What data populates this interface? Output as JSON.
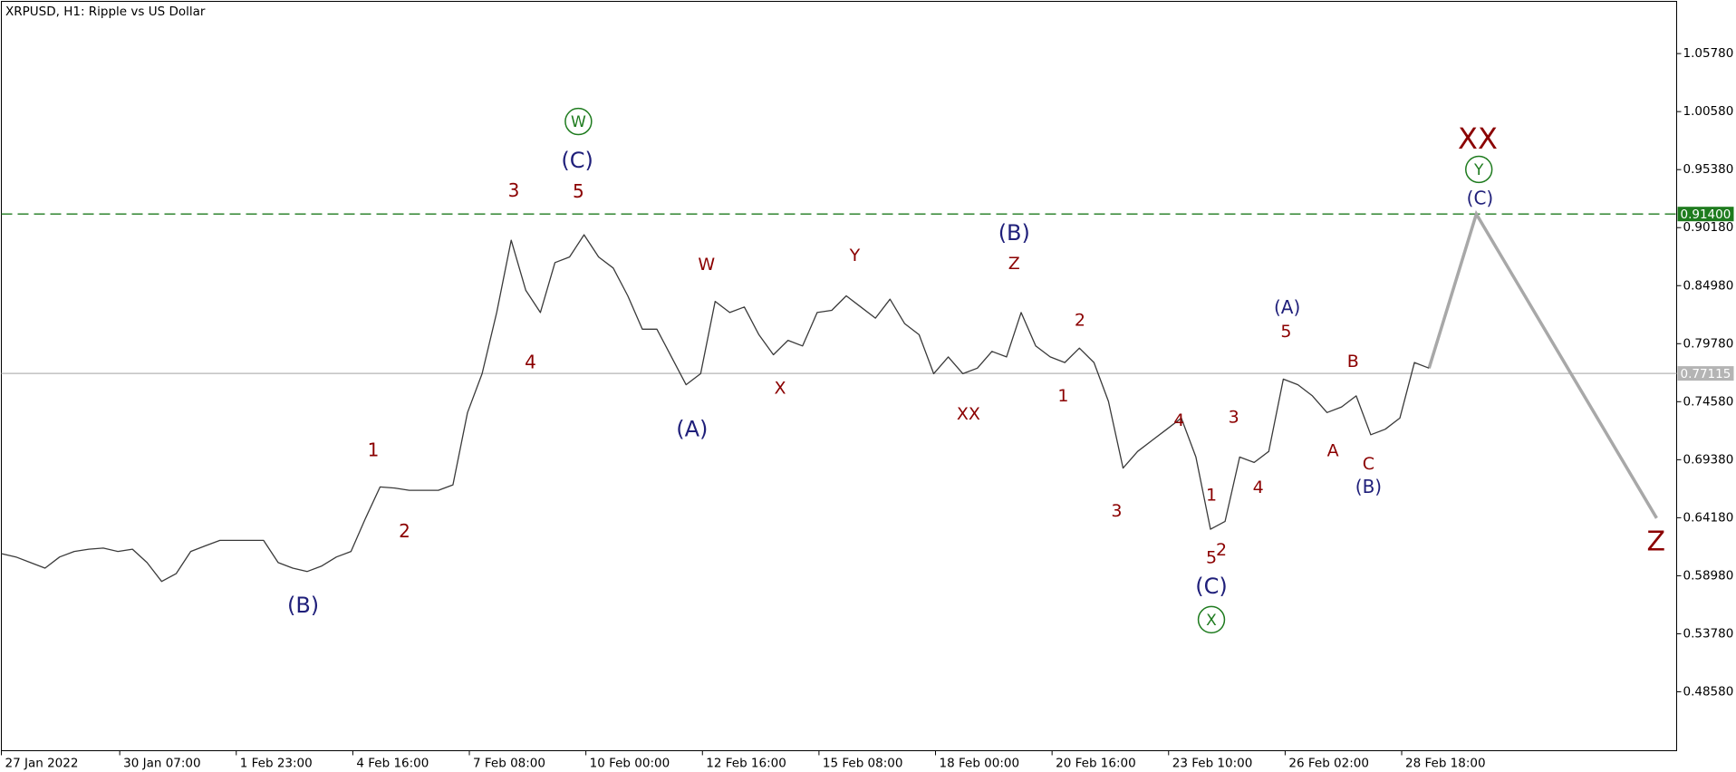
{
  "chart_data": {
    "type": "line",
    "title": "XRPUSD, H1:  Ripple vs US Dollar",
    "x": [
      0,
      8,
      16,
      24,
      32,
      40,
      48,
      56,
      64,
      72,
      80,
      88,
      96,
      104,
      112,
      120,
      128,
      136,
      144,
      152,
      160,
      168,
      176,
      184,
      192,
      200,
      208,
      216,
      224,
      232,
      240,
      248,
      256,
      264,
      272,
      280,
      288,
      296,
      304,
      312,
      320,
      328,
      336,
      344,
      352,
      360,
      368,
      376,
      384,
      392,
      400,
      408,
      416,
      424,
      432,
      440,
      448,
      456,
      464,
      472,
      480,
      488,
      496,
      504,
      512,
      520,
      528,
      536,
      544,
      552,
      560,
      568,
      576,
      584,
      592,
      600,
      608,
      616,
      624,
      632,
      640,
      648,
      656,
      664,
      672,
      680,
      688,
      696,
      704,
      712,
      720,
      728,
      736,
      744,
      752,
      760,
      768,
      776,
      784
    ],
    "series": [
      {
        "color": "#3a3a3a",
        "values": [
          0.6096,
          0.6066,
          0.6016,
          0.5966,
          0.6066,
          0.6116,
          0.6136,
          0.6146,
          0.6116,
          0.6136,
          0.6016,
          0.5847,
          0.5917,
          0.6116,
          0.6166,
          0.6215,
          0.6215,
          0.6215,
          0.6215,
          0.6016,
          0.5966,
          0.5936,
          0.5986,
          0.6066,
          0.6116,
          0.6415,
          0.6694,
          0.6684,
          0.6664,
          0.6664,
          0.6664,
          0.6713,
          0.7361,
          0.7709,
          0.8257,
          0.8905,
          0.8456,
          0.8257,
          0.8705,
          0.8755,
          0.8954,
          0.8755,
          0.8656,
          0.8407,
          0.8108,
          0.8108,
          0.7859,
          0.761,
          0.7709,
          0.8357,
          0.8257,
          0.8307,
          0.8058,
          0.7879,
          0.8008,
          0.7958,
          0.8257,
          0.8277,
          0.8407,
          0.8307,
          0.8207,
          0.8377,
          0.8158,
          0.8058,
          0.7709,
          0.7859,
          0.7709,
          0.7759,
          0.7909,
          0.7859,
          0.8257,
          0.7958,
          0.7859,
          0.7809,
          0.7938,
          0.7809,
          0.7461,
          0.6863,
          0.7012,
          0.7112,
          0.7211,
          0.7311,
          0.6962,
          0.6315,
          0.6385,
          0.6962,
          0.6913,
          0.7012,
          0.766,
          0.761,
          0.751,
          0.7361,
          0.7411,
          0.751,
          0.7162,
          0.7211,
          0.7311,
          0.7809,
          0.7759
        ]
      }
    ],
    "forecast": {
      "color": "#a8a8a8",
      "x": [
        784,
        810,
        909
      ],
      "values": [
        0.7759,
        0.914,
        0.6415
      ]
    },
    "xlim": [
      0,
      920
    ],
    "ylim": [
      0.433,
      1.1046
    ],
    "xticks": [
      {
        "value": 0,
        "label": "27 Jan 2022"
      },
      {
        "value": 65,
        "label": "30 Jan 07:00"
      },
      {
        "value": 129,
        "label": "1 Feb 23:00"
      },
      {
        "value": 193,
        "label": "4 Feb 16:00"
      },
      {
        "value": 257,
        "label": "7 Feb 08:00"
      },
      {
        "value": 321,
        "label": "10 Feb 00:00"
      },
      {
        "value": 385,
        "label": "12 Feb 16:00"
      },
      {
        "value": 449,
        "label": "15 Feb 08:00"
      },
      {
        "value": 513,
        "label": "18 Feb 00:00"
      },
      {
        "value": 577,
        "label": "20 Feb 16:00"
      },
      {
        "value": 641,
        "label": "23 Feb 10:00"
      },
      {
        "value": 705,
        "label": "26 Feb 02:00"
      },
      {
        "value": 769,
        "label": "28 Feb 18:00"
      }
    ],
    "yticks": [
      {
        "value": 0.4858,
        "label": "0.48580"
      },
      {
        "value": 0.5378,
        "label": "0.53780"
      },
      {
        "value": 0.5898,
        "label": "0.58980"
      },
      {
        "value": 0.6418,
        "label": "0.64180"
      },
      {
        "value": 0.6938,
        "label": "0.69380"
      },
      {
        "value": 0.7458,
        "label": "0.74580"
      },
      {
        "value": 0.7978,
        "label": "0.79780"
      },
      {
        "value": 0.8498,
        "label": "0.84980"
      },
      {
        "value": 0.9018,
        "label": "0.90180"
      },
      {
        "value": 0.9538,
        "label": "0.95380"
      },
      {
        "value": 1.0058,
        "label": "1.00580"
      },
      {
        "value": 1.0578,
        "label": "1.05780"
      }
    ],
    "levels": [
      {
        "value": 0.914,
        "label": "0.91400",
        "color": "#1e7b1e",
        "dashed": true
      },
      {
        "value": 0.77115,
        "label": "0.77115",
        "color": "#b4b4b4",
        "dashed": false
      }
    ],
    "wave_labels": [
      {
        "text": "1",
        "color": "#8b0000"
      },
      {
        "text": "2",
        "color": "#8b0000"
      },
      {
        "text": "3",
        "color": "#8b0000"
      },
      {
        "text": "4",
        "color": "#8b0000"
      },
      {
        "text": "5",
        "color": "#8b0000"
      },
      {
        "text": "W",
        "color": "#8b0000"
      },
      {
        "text": "X",
        "color": "#8b0000"
      },
      {
        "text": "Y",
        "color": "#8b0000"
      },
      {
        "text": "XX",
        "color": "#8b0000"
      },
      {
        "text": "Z",
        "color": "#8b0000"
      },
      {
        "text": "1",
        "color": "#8b0000"
      },
      {
        "text": "2",
        "color": "#8b0000"
      },
      {
        "text": "3",
        "color": "#8b0000"
      },
      {
        "text": "4",
        "color": "#8b0000"
      },
      {
        "text": "1",
        "color": "#8b0000"
      },
      {
        "text": "5",
        "color": "#8b0000"
      },
      {
        "text": "2",
        "color": "#8b0000"
      },
      {
        "text": "3",
        "color": "#8b0000"
      },
      {
        "text": "4",
        "color": "#8b0000"
      },
      {
        "text": "5",
        "color": "#8b0000"
      },
      {
        "text": "A",
        "color": "#8b0000"
      },
      {
        "text": "B",
        "color": "#8b0000"
      },
      {
        "text": "C",
        "color": "#8b0000"
      },
      {
        "text": "XX",
        "color": "#8b0000"
      },
      {
        "text": "Z",
        "color": "#8b0000"
      },
      {
        "text": "(C)",
        "color": "#1f1f7a"
      },
      {
        "text": "(A)",
        "color": "#1f1f7a"
      },
      {
        "text": "(B)",
        "color": "#1f1f7a"
      },
      {
        "text": "(B)",
        "color": "#1f1f7a"
      },
      {
        "text": "(C)",
        "color": "#1f1f7a"
      },
      {
        "text": "(A)",
        "color": "#1f1f7a"
      },
      {
        "text": "(B)",
        "color": "#1f1f7a"
      },
      {
        "text": "(C)",
        "color": "#1f1f7a"
      },
      {
        "text": "W",
        "color": "#1e7b1e",
        "circled": true
      },
      {
        "text": "X",
        "color": "#1e7b1e",
        "circled": true
      },
      {
        "text": "Y",
        "color": "#1e7b1e",
        "circled": true
      }
    ]
  }
}
